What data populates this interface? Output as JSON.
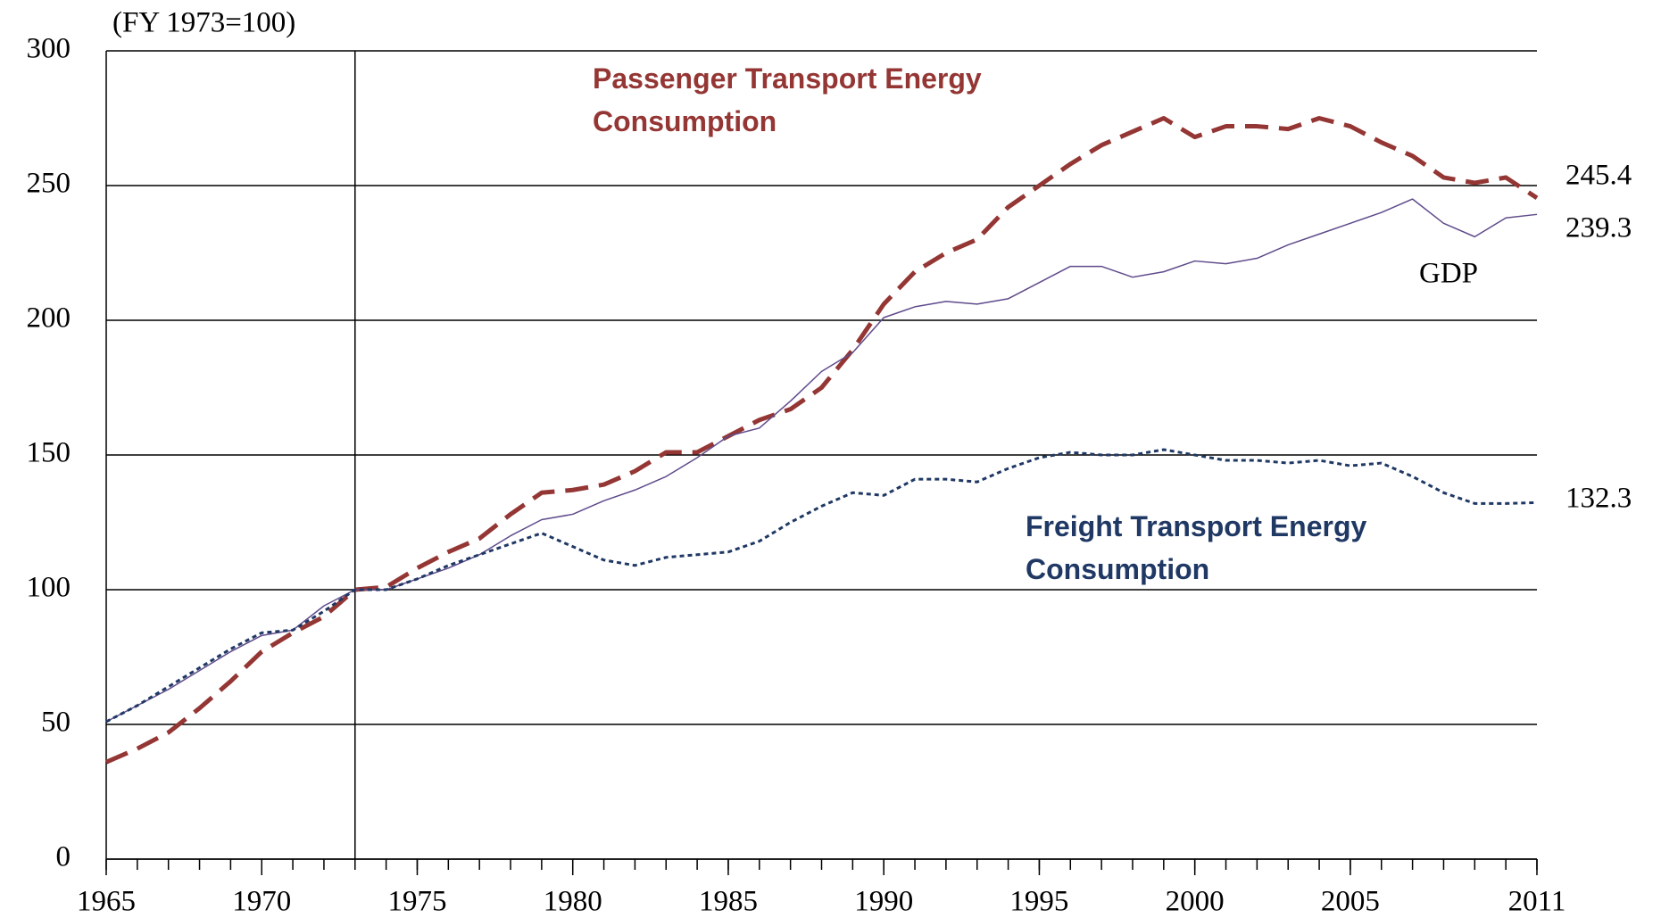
{
  "chart_data": {
    "type": "line",
    "y_label": "(FY 1973=100)",
    "xlim": [
      1965,
      2011
    ],
    "xticks": [
      1965,
      1970,
      1975,
      1980,
      1985,
      1990,
      1995,
      2000,
      2005,
      2011
    ],
    "ylim": [
      0,
      300
    ],
    "yticks": [
      0,
      50,
      100,
      150,
      200,
      250,
      300
    ],
    "grid": true,
    "x": [
      1965,
      1966,
      1967,
      1968,
      1969,
      1970,
      1971,
      1972,
      1973,
      1974,
      1975,
      1976,
      1977,
      1978,
      1979,
      1980,
      1981,
      1982,
      1983,
      1984,
      1985,
      1986,
      1987,
      1988,
      1989,
      1990,
      1991,
      1992,
      1993,
      1994,
      1995,
      1996,
      1997,
      1998,
      1999,
      2000,
      2001,
      2002,
      2003,
      2004,
      2005,
      2006,
      2007,
      2008,
      2009,
      2010,
      2011
    ],
    "series": [
      {
        "name": "Passenger Transport Energy Consumption",
        "color": "#943634",
        "line_style": "dashed",
        "values": [
          36,
          41,
          47,
          56,
          66,
          77,
          84,
          90,
          100,
          101,
          108,
          114,
          119,
          128,
          136,
          137,
          139,
          144,
          151,
          151,
          157,
          163,
          167,
          175,
          189,
          206,
          218,
          225,
          230,
          242,
          250,
          258,
          265,
          270,
          275,
          268,
          272,
          272,
          271,
          275,
          272,
          266,
          261,
          253,
          251,
          253,
          245.4
        ]
      },
      {
        "name": "GDP",
        "color": "#5f4b8b",
        "line_style": "solid",
        "values": [
          51,
          57,
          63,
          70,
          77,
          83,
          85,
          94,
          100,
          100,
          104,
          108,
          113,
          120,
          126,
          128,
          133,
          137,
          142,
          149,
          157,
          160,
          170,
          181,
          188,
          201,
          205,
          207,
          206,
          208,
          214,
          220,
          220,
          216,
          218,
          222,
          221,
          223,
          228,
          232,
          236,
          240,
          245,
          236,
          231,
          238,
          239.3
        ]
      },
      {
        "name": "Freight Transport Energy Consumption",
        "color": "#1f3864",
        "line_style": "dotted",
        "values": [
          51,
          57,
          64,
          71,
          78,
          84,
          85,
          92,
          100,
          100,
          104,
          109,
          113,
          117,
          121,
          116,
          111,
          109,
          112,
          113,
          114,
          118,
          125,
          131,
          136,
          135,
          141,
          141,
          140,
          145,
          149,
          151,
          150,
          150,
          152,
          150,
          148,
          148,
          147,
          148,
          146,
          147,
          142,
          136,
          132,
          132,
          132.3
        ]
      }
    ]
  }
}
